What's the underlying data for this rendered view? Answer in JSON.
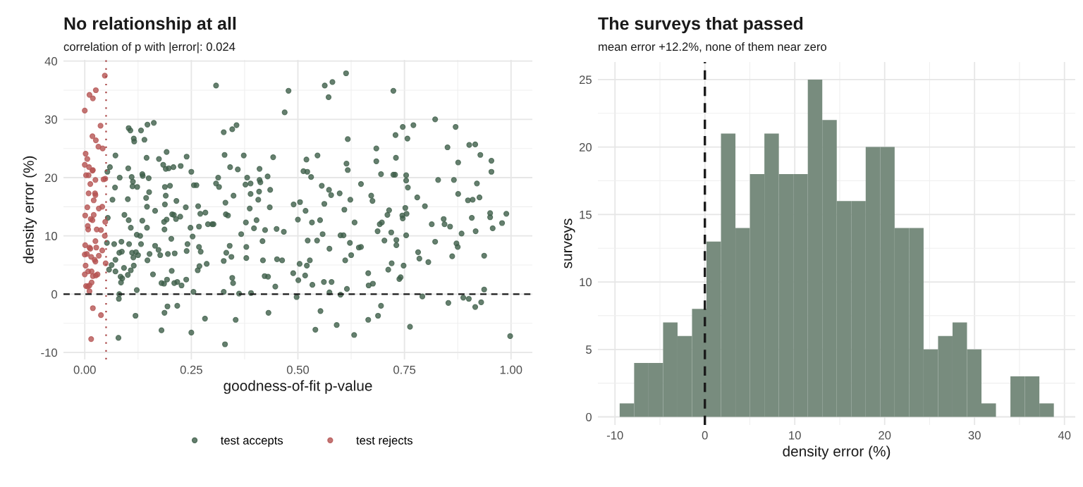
{
  "chart_data": [
    {
      "type": "scatter",
      "title": "No relationship at all",
      "subtitle": "correlation of p with |error|: 0.024",
      "xlabel": "goodness-of-fit p-value",
      "ylabel": "density error (%)",
      "marker": "circle",
      "legend": "bottom",
      "grid": true,
      "xlim": [
        -0.05,
        1.05
      ],
      "ylim": [
        -11.2,
        40.2
      ],
      "xticks": [
        {
          "value": 0,
          "label": "0.00"
        },
        {
          "value": 0.125,
          "label": null
        },
        {
          "value": 0.25,
          "label": "0.25"
        },
        {
          "value": 0.375,
          "label": null
        },
        {
          "value": 0.5,
          "label": "0.50"
        },
        {
          "value": 0.625,
          "label": null
        },
        {
          "value": 0.75,
          "label": "0.75"
        },
        {
          "value": 0.875,
          "label": null
        },
        {
          "value": 1,
          "label": "1.00"
        }
      ],
      "yticks": [
        -10,
        {
          "value": -5,
          "label": null
        },
        0,
        {
          "value": 5,
          "label": null
        },
        10,
        {
          "value": 15,
          "label": null
        },
        20,
        {
          "value": 25,
          "label": null
        },
        30,
        {
          "value": 35,
          "label": null
        },
        40
      ],
      "ref_lines": [
        {
          "axis": "y",
          "value": 0,
          "color": "#1a1a1a",
          "line_style": "dashed"
        },
        {
          "axis": "x",
          "value": 0.05,
          "color": "#a84444",
          "line_style": "dotted"
        }
      ],
      "series": [
        {
          "name": "test accepts",
          "color": "#3f5f4a",
          "x": [
            0.103,
            0.107,
            0.132,
            0.147,
            0.162,
            0.115,
            0.116,
            0.14,
            0.072,
            0.145,
            0.174,
            0.192,
            0.239,
            0.059,
            0.053,
            0.102,
            0.184,
            0.19,
            0.197,
            0.208,
            0.225,
            0.25,
            0.082,
            0.11,
            0.113,
            0.135,
            0.136,
            0.15,
            0.071,
            0.112,
            0.123,
            0.188,
            0.2,
            0.256,
            0.262,
            0.151,
            0.144,
            0.19,
            0.065,
            0.101,
            0.215,
            0.146,
            0.188,
            0.237,
            0.266,
            0.165,
            0.271,
            0.283,
            0.054,
            0.093,
            0.103,
            0.135,
            0.205,
            0.209,
            0.214,
            0.224,
            0.192,
            0.186,
            0.108,
            0.146,
            0.187,
            0.248,
            0.268,
            0.289,
            0.299,
            0.122,
            0.13,
            0.253,
            0.203,
            0.052,
            0.069,
            0.086,
            0.104,
            0.132,
            0.165,
            0.173,
            0.177,
            0.241,
            0.239,
            0.268,
            0.272,
            0.081,
            0.087,
            0.111,
            0.12,
            0.125,
            0.114,
            0.152,
            0.195,
            0.211,
            0.147,
            0.072,
            0.063,
            0.057,
            0.072,
            0.092,
            0.108,
            0.115,
            0.101,
            0.16,
            0.204,
            0.265,
            0.269,
            0.286,
            0.084,
            0.088,
            0.085,
            0.18,
            0.186,
            0.193,
            0.21,
            0.217,
            0.227,
            0.238,
            0.122,
            0.255,
            0.081,
            0.08,
            0.194,
            0.217,
            0.187,
            0.119,
            0.282,
            0.18,
            0.25,
            0.079,
            0.308,
            0.478,
            0.469,
            0.563,
            0.581,
            0.572,
            0.613,
            0.326,
            0.346,
            0.356,
            0.617,
            0.328,
            0.373,
            0.442,
            0.341,
            0.359,
            0.41,
            0.429,
            0.381,
            0.377,
            0.389,
            0.41,
            0.412,
            0.435,
            0.389,
            0.409,
            0.407,
            0.349,
            0.313,
            0.308,
            0.315,
            0.33,
            0.387,
            0.434,
            0.52,
            0.546,
            0.513,
            0.522,
            0.531,
            0.614,
            0.617,
            0.556,
            0.573,
            0.578,
            0.598,
            0.623,
            0.49,
            0.505,
            0.518,
            0.562,
            0.609,
            0.331,
            0.336,
            0.302,
            0.378,
            0.403,
            0.397,
            0.423,
            0.45,
            0.467,
            0.5,
            0.533,
            0.552,
            0.633,
            0.367,
            0.558,
            0.6,
            0.607,
            0.523,
            0.545,
            0.622,
            0.34,
            0.332,
            0.344,
            0.326,
            0.379,
            0.379,
            0.417,
            0.418,
            0.451,
            0.463,
            0.643,
            0.574,
            0.625,
            0.611,
            0.528,
            0.521,
            0.504,
            0.489,
            0.501,
            0.517,
            0.534,
            0.561,
            0.579,
            0.615,
            0.574,
            0.6,
            0.346,
            0.348,
            0.422,
            0.43,
            0.447,
            0.326,
            0.362,
            0.39,
            0.497,
            0.431,
            0.553,
            0.354,
            0.541,
            0.591,
            0.632,
            0.329,
            0.648,
            0.648,
            0.724,
            0.822,
            0.746,
            0.771,
            0.729,
            0.757,
            0.87,
            0.851,
            0.902,
            0.916,
            0.684,
            0.684,
            0.73,
            0.928,
            0.954,
            0.876,
            0.954,
            0.695,
            0.724,
            0.728,
            0.754,
            0.754,
            0.758,
            0.829,
            0.866,
            0.92,
            0.672,
            0.675,
            0.78,
            0.798,
            0.876,
            0.899,
            0.91,
            0.926,
            0.714,
            0.71,
            0.752,
            0.745,
            0.755,
            0.746,
            0.842,
            0.844,
            0.857,
            0.814,
            0.908,
            0.951,
            0.951,
            0.989,
            0.979,
            0.957,
            0.917,
            0.884,
            0.697,
            0.692,
            0.687,
            0.719,
            0.754,
            0.703,
            0.731,
            0.731,
            0.822,
            0.872,
            0.875,
            0.782,
            0.785,
            0.806,
            0.862,
            0.937,
            0.72,
            0.712,
            0.748,
            0.665,
            0.741,
            0.738,
            0.666,
            0.676,
            0.937,
            0.792,
            0.853,
            0.888,
            0.901,
            0.93,
            0.916,
            0.695,
            0.688,
            0.665,
            0.763,
            0.998
          ],
          "values": [
            28.5,
            28.1,
            28.1,
            29.1,
            29.4,
            26.7,
            26.2,
            26.5,
            23.8,
            23.4,
            23.2,
            24.4,
            23.6,
            21.8,
            21.0,
            21.6,
            22.2,
            21.5,
            21.6,
            21.8,
            22.0,
            21.0,
            20.0,
            20.1,
            19.3,
            20.6,
            20.3,
            19.9,
            18.3,
            18.5,
            18.4,
            18.4,
            18.6,
            18.7,
            18.7,
            17.5,
            16.5,
            16.9,
            16.2,
            16.3,
            16.0,
            15.0,
            15.4,
            14.9,
            15.1,
            14.3,
            13.8,
            14.0,
            13.1,
            13.6,
            12.7,
            12.6,
            13.7,
            13.6,
            12.9,
            13.3,
            12.8,
            12.4,
            11.4,
            11.4,
            11.1,
            11.4,
            11.6,
            12.0,
            12.0,
            10.2,
            10.0,
            9.9,
            9.5,
            8.8,
            8.6,
            9.0,
            8.6,
            8.6,
            8.3,
            7.6,
            6.7,
            8.6,
            7.4,
            8.1,
            7.3,
            7.1,
            7.3,
            7.1,
            7.2,
            6.7,
            6.3,
            6.9,
            6.9,
            7.0,
            5.8,
            5.9,
            5.0,
            4.2,
            3.9,
            4.5,
            4.1,
            4.9,
            3.3,
            3.4,
            4.0,
            4.1,
            4.8,
            5.2,
            3.0,
            2.7,
            2.0,
            1.9,
            1.8,
            2.5,
            1.9,
            2.1,
            1.5,
            2.5,
            0.7,
            0.4,
            0.0,
            -0.8,
            -2.1,
            -2.0,
            -3.2,
            -3.7,
            -4.2,
            -6.2,
            -6.6,
            -7.5,
            35.8,
            34.9,
            31.2,
            35.8,
            36.4,
            33.8,
            37.9,
            27.8,
            28.3,
            29.0,
            26.6,
            23.9,
            23.8,
            23.5,
            21.8,
            21.4,
            21.5,
            20.2,
            20.0,
            18.8,
            19.0,
            19.6,
            19.2,
            17.9,
            17.2,
            17.6,
            16.2,
            16.9,
            20.0,
            19.0,
            18.4,
            15.7,
            14.7,
            14.9,
            23.1,
            23.8,
            21.1,
            21.0,
            20.1,
            22.4,
            21.3,
            18.6,
            17.9,
            17.0,
            17.3,
            16.2,
            15.4,
            15.8,
            14.3,
            15.5,
            14.5,
            13.7,
            13.5,
            12.0,
            12.3,
            12.7,
            11.3,
            11.0,
            11.2,
            10.7,
            12.8,
            12.3,
            12.7,
            12.3,
            10.3,
            10.3,
            10.1,
            10.1,
            9.2,
            9.2,
            8.8,
            8.3,
            7.1,
            6.4,
            5.7,
            8.1,
            6.2,
            9.1,
            5.8,
            6.0,
            5.8,
            8.0,
            7.8,
            6.7,
            5.8,
            5.8,
            4.9,
            5.2,
            3.6,
            2.4,
            3.2,
            1.6,
            2.1,
            2.1,
            0.9,
            0.3,
            -0.1,
            2.8,
            1.9,
            3.1,
            3.0,
            1.3,
            0.4,
            0.1,
            0.2,
            -0.5,
            -3.2,
            -2.9,
            -4.4,
            -6.1,
            -5.3,
            -7.0,
            -8.6,
            18.9,
            8.1,
            34.9,
            30.0,
            28.7,
            29.0,
            27.3,
            26.7,
            28.7,
            25.2,
            25.6,
            25.7,
            25.0,
            22.8,
            23.4,
            23.9,
            22.9,
            22.6,
            21.0,
            20.6,
            20.5,
            20.5,
            20.4,
            19.5,
            18.3,
            19.6,
            19.6,
            19.0,
            16.9,
            16.0,
            16.6,
            15.1,
            17.2,
            16.1,
            16.2,
            16.6,
            14.4,
            13.6,
            14.8,
            13.5,
            13.8,
            13.0,
            12.9,
            12.0,
            11.6,
            12.0,
            13.1,
            13.9,
            13.2,
            13.8,
            12.2,
            11.3,
            10.8,
            10.4,
            12.3,
            12.0,
            10.8,
            10.6,
            10.1,
            9.2,
            9.3,
            8.4,
            9.0,
            8.7,
            8.1,
            7.2,
            6.1,
            5.5,
            6.5,
            6.6,
            5.3,
            4.2,
            4.9,
            3.6,
            2.9,
            2.6,
            1.5,
            1.8,
            0.8,
            -0.4,
            -1.5,
            -0.6,
            -0.8,
            -1.4,
            -2.2,
            -2.0,
            -3.7,
            -4.4,
            -5.6,
            -7.2
          ]
        },
        {
          "name": "test rejects",
          "color": "#b55452",
          "x": [
            0.047,
            0.011,
            0.026,
            0.019,
            0.0,
            0.037,
            0.018,
            0.026,
            0.032,
            0.042,
            0.002,
            0.006,
            0.0,
            0.01,
            0.019,
            0.018,
            0.003,
            0.009,
            0.025,
            0.044,
            0.048,
            0.013,
            0.009,
            0.024,
            0.025,
            0.021,
            0.006,
            0.033,
            0.041,
            0.001,
            0.021,
            0.014,
            0.018,
            0.048,
            0.007,
            0.008,
            0.028,
            0.038,
            0.047,
            0.001,
            0.025,
            0.011,
            0.027,
            0.041,
            0.013,
            0.0,
            0.005,
            0.015,
            0.033,
            0.023,
            0.025,
            0.049,
            0.002,
            0.0,
            0.008,
            0.016,
            0.019,
            0.026,
            0.03,
            0.016,
            0.003,
            0.011,
            0.007,
            0.011,
            0.019,
            0.038,
            0.015
          ],
          "values": [
            37.5,
            34.2,
            35.0,
            33.6,
            31.5,
            28.9,
            27.1,
            26.4,
            25.3,
            25.0,
            24.1,
            23.2,
            22.2,
            21.8,
            21.3,
            21.2,
            20.4,
            20.4,
            19.6,
            19.7,
            19.8,
            18.9,
            17.3,
            17.3,
            17.0,
            16.1,
            14.9,
            14.7,
            15.0,
            13.5,
            13.6,
            12.9,
            12.7,
            12.4,
            11.7,
            11.1,
            11.1,
            11.0,
            10.0,
            8.4,
            9.1,
            8.0,
            8.0,
            7.5,
            7.8,
            6.8,
            6.9,
            6.4,
            6.6,
            5.9,
            5.6,
            5.3,
            4.9,
            3.4,
            3.9,
            3.9,
            3.1,
            3.2,
            3.4,
            2.0,
            1.4,
            1.5,
            1.3,
            0.5,
            -2.4,
            -3.6,
            -7.7
          ]
        }
      ]
    },
    {
      "type": "histogram",
      "title": "The surveys that passed",
      "subtitle": "mean error +12.2%, none of them near zero",
      "xlabel": "density error (%)",
      "ylabel": "surveys",
      "grid": true,
      "color": "#788c7e",
      "xlim": [
        -11.9,
        41.2
      ],
      "ylim": [
        -0.6,
        26.3
      ],
      "xticks": [
        -10,
        {
          "value": -5,
          "label": null
        },
        0,
        {
          "value": 5,
          "label": null
        },
        10,
        {
          "value": 15,
          "label": null
        },
        20,
        {
          "value": 25,
          "label": null
        },
        30,
        {
          "value": 35,
          "label": null
        },
        40
      ],
      "yticks": [
        0,
        {
          "value": 2.5,
          "label": null
        },
        5,
        {
          "value": 7.5,
          "label": null
        },
        10,
        {
          "value": 12.5,
          "label": null
        },
        15,
        {
          "value": 17.5,
          "label": null
        },
        20,
        {
          "value": 22.5,
          "label": null
        },
        25
      ],
      "ref_lines": [
        {
          "axis": "x",
          "value": 0,
          "color": "#1a1a1a",
          "line_style": "dashed"
        }
      ],
      "bins": [
        -9.48,
        -7.87,
        -6.26,
        -4.65,
        -3.04,
        -1.43,
        0.18,
        1.79,
        3.4,
        5.01,
        6.62,
        8.23,
        9.84,
        11.45,
        13.06,
        14.67,
        16.28,
        17.89,
        19.5,
        21.11,
        22.72,
        24.33,
        25.94,
        27.55,
        29.16,
        30.77,
        32.38,
        33.99,
        35.6,
        37.21,
        38.82
      ],
      "values": [
        1,
        4,
        4,
        7,
        6,
        8,
        13,
        21,
        14,
        18,
        21,
        18,
        18,
        25,
        22,
        16,
        16,
        20,
        20,
        14,
        14,
        5,
        6,
        7,
        5,
        1,
        0,
        3,
        3,
        1
      ]
    }
  ]
}
